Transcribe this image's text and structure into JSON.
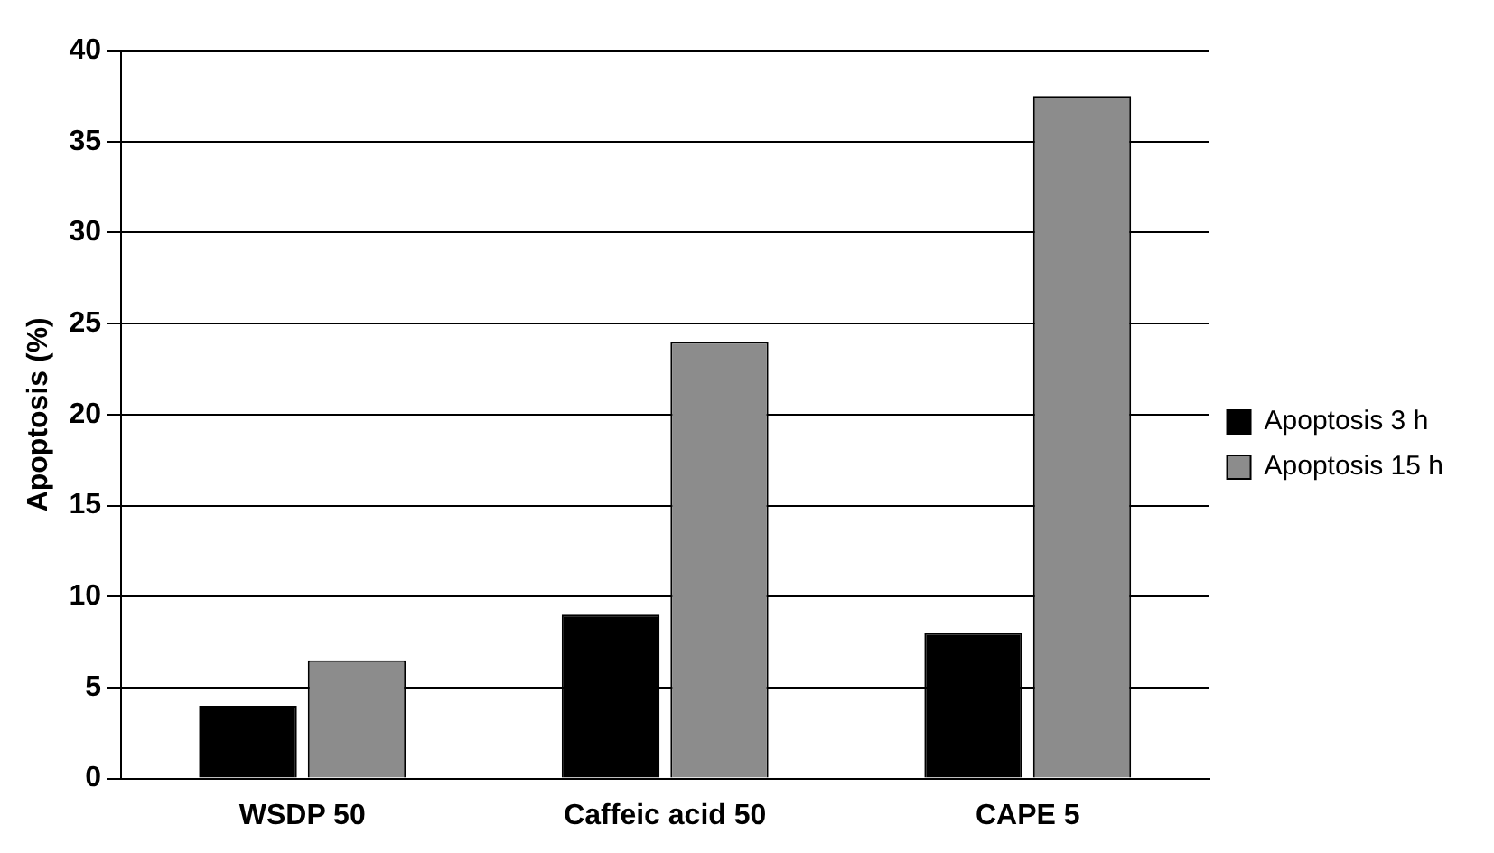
{
  "chart_data": {
    "type": "bar",
    "ylabel": "Apoptosis (%)",
    "categories": [
      "WSDP 50",
      "Caffeic acid 50",
      "CAPE 5"
    ],
    "series": [
      {
        "name": "Apoptosis 3 h",
        "color": "#000000",
        "values": [
          4,
          9,
          8
        ]
      },
      {
        "name": "Apoptosis 15 h",
        "color": "#8c8c8c",
        "values": [
          6.5,
          24,
          37.5
        ]
      }
    ],
    "ylim": [
      0,
      40
    ],
    "yticks": [
      0,
      5,
      10,
      15,
      20,
      25,
      30,
      35,
      40
    ],
    "grid": "y",
    "legend": "right"
  }
}
